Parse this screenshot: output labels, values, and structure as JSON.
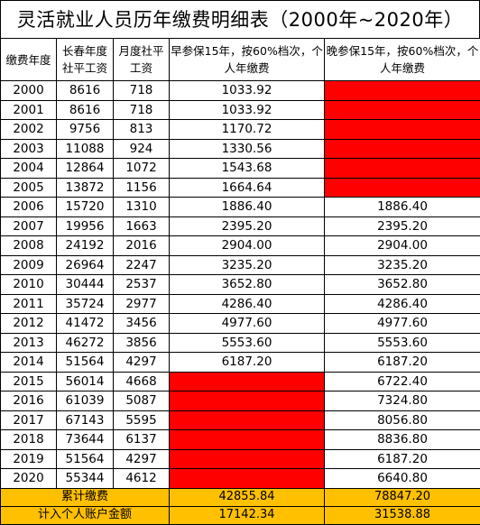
{
  "title": "灵活就业人员历年缴费明细表（2000年~2020年）",
  "headers": {
    "year": "缴费年度",
    "avg_salary_year": "长春年度社平工资",
    "avg_salary_month": "月度社平工资",
    "early": "早参保15年，按60%档次，个人年缴费",
    "late": "晚参保15年，按60%档次，个人年缴费"
  },
  "rows": [
    {
      "year": "2000",
      "annual": "8616",
      "monthly": "718",
      "early": "1033.92",
      "late": ""
    },
    {
      "year": "2001",
      "annual": "8616",
      "monthly": "718",
      "early": "1033.92",
      "late": ""
    },
    {
      "year": "2002",
      "annual": "9756",
      "monthly": "813",
      "early": "1170.72",
      "late": ""
    },
    {
      "year": "2003",
      "annual": "11088",
      "monthly": "924",
      "early": "1330.56",
      "late": ""
    },
    {
      "year": "2004",
      "annual": "12864",
      "monthly": "1072",
      "early": "1543.68",
      "late": ""
    },
    {
      "year": "2005",
      "annual": "13872",
      "monthly": "1156",
      "early": "1664.64",
      "late": ""
    },
    {
      "year": "2006",
      "annual": "15720",
      "monthly": "1310",
      "early": "1886.40",
      "late": "1886.40"
    },
    {
      "year": "2007",
      "annual": "19956",
      "monthly": "1663",
      "early": "2395.20",
      "late": "2395.20"
    },
    {
      "year": "2008",
      "annual": "24192",
      "monthly": "2016",
      "early": "2904.00",
      "late": "2904.00"
    },
    {
      "year": "2009",
      "annual": "26964",
      "monthly": "2247",
      "early": "3235.20",
      "late": "3235.20"
    },
    {
      "year": "2010",
      "annual": "30444",
      "monthly": "2537",
      "early": "3652.80",
      "late": "3652.80"
    },
    {
      "year": "2011",
      "annual": "35724",
      "monthly": "2977",
      "early": "4286.40",
      "late": "4286.40"
    },
    {
      "year": "2012",
      "annual": "41472",
      "monthly": "3456",
      "early": "4977.60",
      "late": "4977.60"
    },
    {
      "year": "2013",
      "annual": "46272",
      "monthly": "3856",
      "early": "5553.60",
      "late": "5553.60"
    },
    {
      "year": "2014",
      "annual": "51564",
      "monthly": "4297",
      "early": "6187.20",
      "late": "6187.20"
    },
    {
      "year": "2015",
      "annual": "56014",
      "monthly": "4668",
      "early": "",
      "late": "6722.40"
    },
    {
      "year": "2016",
      "annual": "61039",
      "monthly": "5087",
      "early": "",
      "late": "7324.80"
    },
    {
      "year": "2017",
      "annual": "67143",
      "monthly": "5595",
      "early": "",
      "late": "8056.80"
    },
    {
      "year": "2018",
      "annual": "73644",
      "monthly": "6137",
      "early": "",
      "late": "8836.80"
    },
    {
      "year": "2019",
      "annual": "51564",
      "monthly": "4297",
      "early": "",
      "late": "6187.20"
    },
    {
      "year": "2020",
      "annual": "55344",
      "monthly": "4612",
      "early": "",
      "late": "6640.80"
    }
  ],
  "totals": {
    "label": "累计缴费",
    "early": "42855.84",
    "late": "78847.20"
  },
  "account": {
    "label": "计入个人账户金额",
    "early": "17142.34",
    "late": "31538.88"
  },
  "colors": {
    "missing_cell": "#ff0000",
    "summary_fill": "#ffc000"
  }
}
